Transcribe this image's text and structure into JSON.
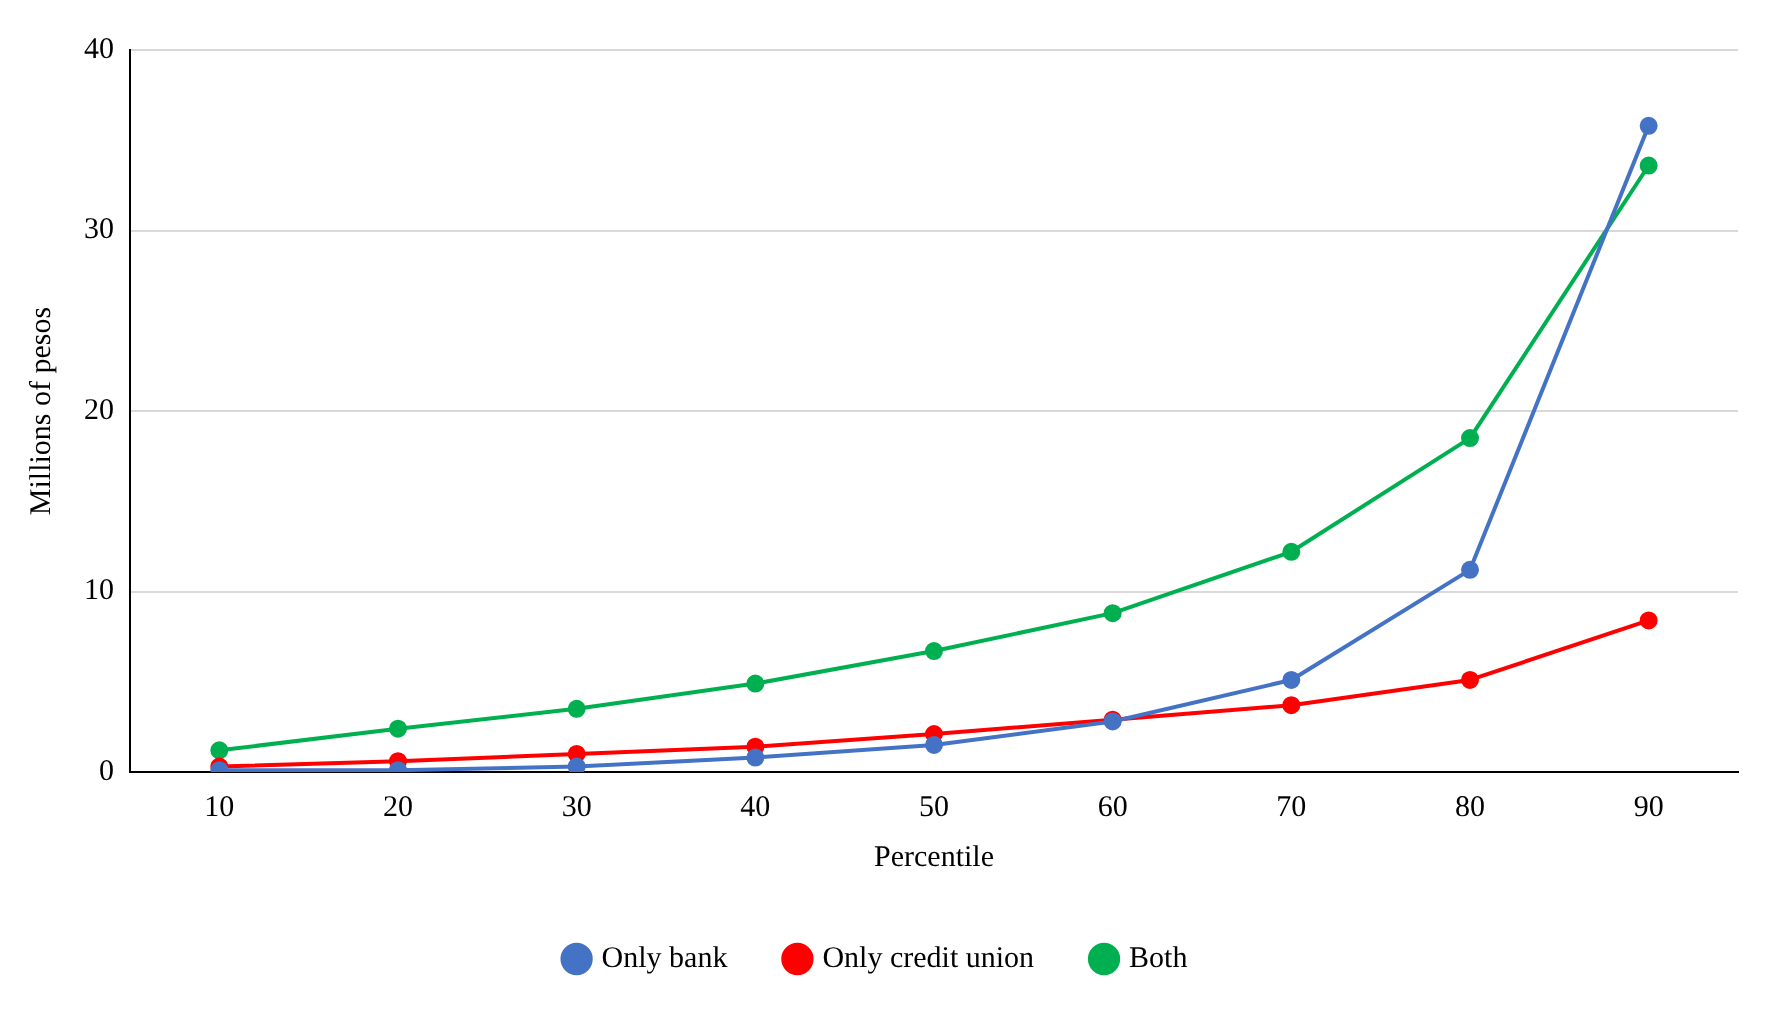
{
  "chart_data": {
    "type": "line",
    "xlabel": "Percentile",
    "ylabel": "Millions of pesos",
    "categories": [
      "10",
      "20",
      "30",
      "40",
      "50",
      "60",
      "70",
      "80",
      "90"
    ],
    "series": [
      {
        "name": "Only bank",
        "color": "#4472c4",
        "values": [
          0.1,
          0.1,
          0.3,
          0.8,
          1.5,
          2.8,
          5.1,
          11.2,
          35.8
        ]
      },
      {
        "name": "Only credit union",
        "color": "#ff0000",
        "values": [
          0.3,
          0.6,
          1.0,
          1.4,
          2.1,
          2.9,
          3.7,
          5.1,
          8.4
        ]
      },
      {
        "name": "Both",
        "color": "#00b050",
        "values": [
          1.2,
          2.4,
          3.5,
          4.9,
          6.7,
          8.8,
          12.2,
          18.5,
          33.6
        ]
      }
    ],
    "ylim": [
      0,
      40
    ],
    "yticks": [
      0,
      10,
      20,
      30,
      40
    ],
    "grid": "y",
    "legend": "bottom",
    "marker": "circle",
    "line_style": "solid"
  }
}
